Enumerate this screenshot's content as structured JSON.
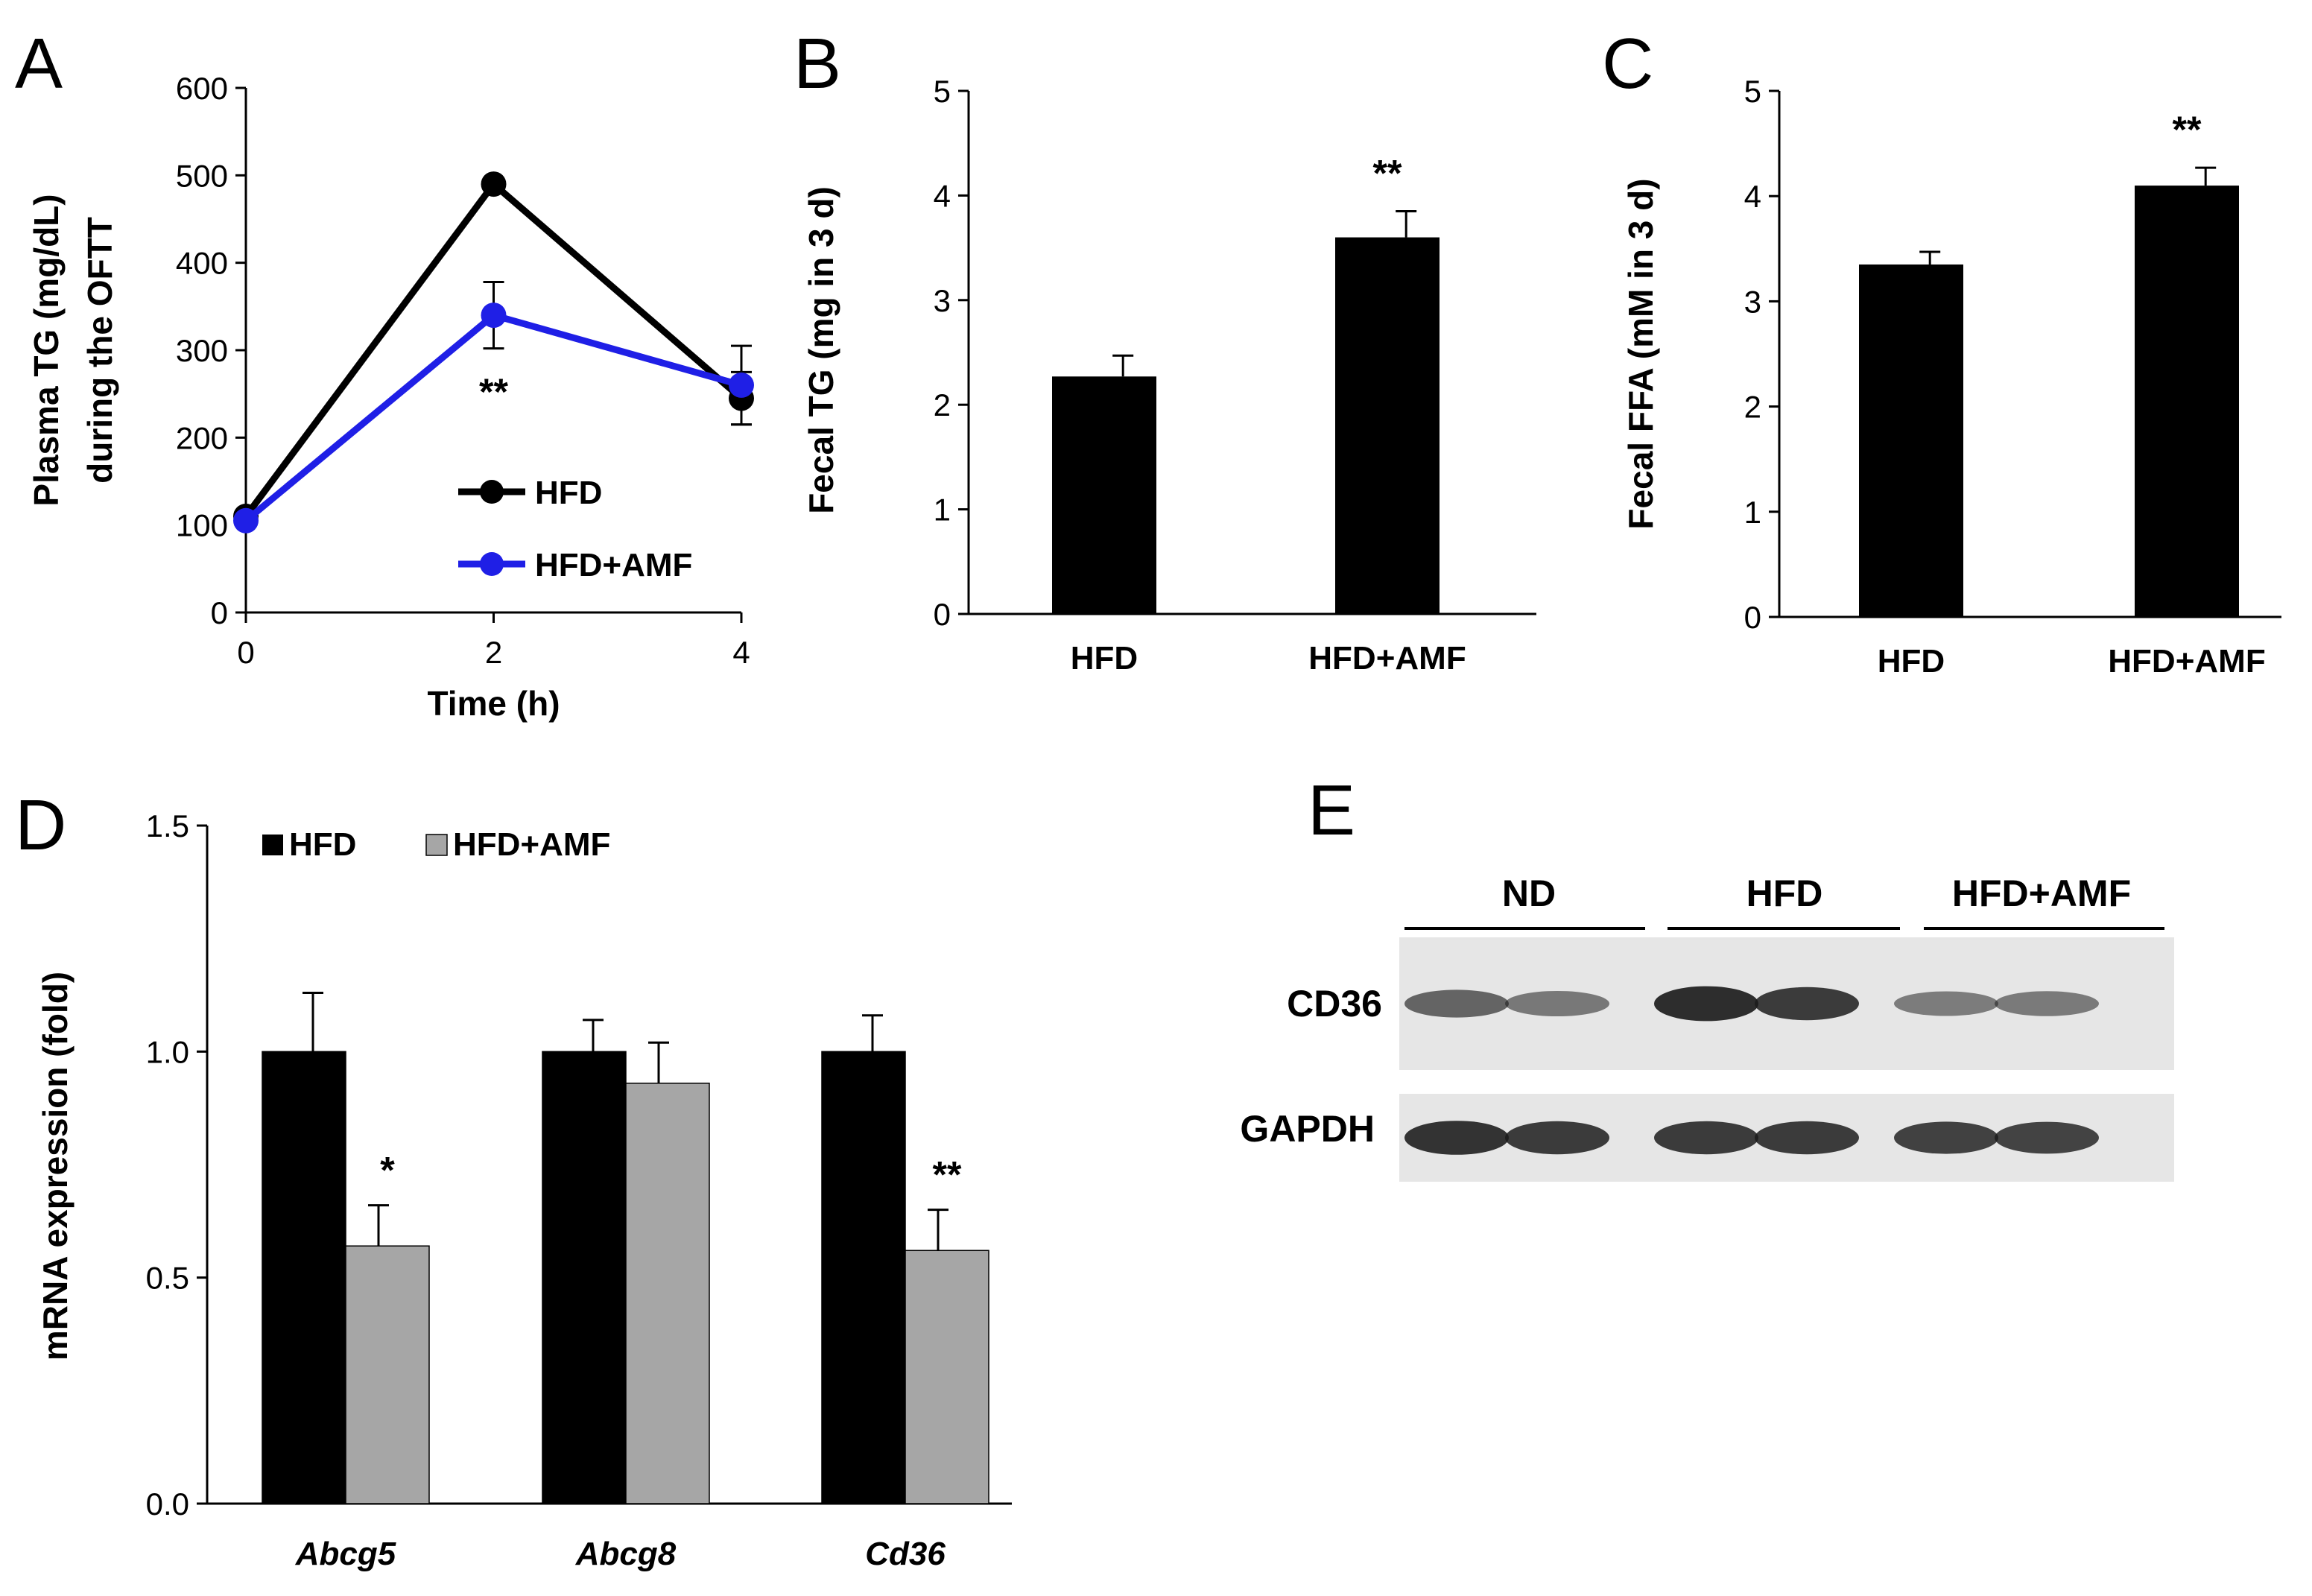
{
  "colors": {
    "hfd": "#000000",
    "amf_line": "#1f1fe6",
    "amf_bar": "#a6a6a6",
    "axis": "#000000",
    "blot_bg": "#e6e6e6",
    "band": "#1a1a1a"
  },
  "chart_data": [
    {
      "panel": "A",
      "type": "line",
      "xlabel": "Time (h)",
      "ylabel_line1": "Plasma TG (mg/dL)",
      "ylabel_line2": "during the OFTT",
      "x": [
        0,
        2,
        4
      ],
      "x_ticks": [
        "0",
        "2",
        "4"
      ],
      "ylim": [
        0,
        600
      ],
      "y_ticks": [
        "0",
        "100",
        "200",
        "300",
        "400",
        "500",
        "600"
      ],
      "series": [
        {
          "name": "HFD",
          "values": [
            110,
            490,
            245
          ],
          "errors": [
            0,
            0,
            30
          ],
          "color_key": "hfd"
        },
        {
          "name": "HFD+AMF",
          "values": [
            105,
            340,
            260
          ],
          "errors": [
            0,
            38,
            45
          ],
          "color_key": "amf_line"
        }
      ],
      "annotations": [
        {
          "x": 2,
          "text": "**"
        }
      ]
    },
    {
      "panel": "B",
      "type": "bar",
      "ylabel": "Fecal TG (mg in 3 d)",
      "categories": [
        "HFD",
        "HFD+AMF"
      ],
      "values": [
        2.27,
        3.6
      ],
      "errors": [
        0.2,
        0.25
      ],
      "ylim": [
        0,
        5
      ],
      "y_ticks": [
        "0",
        "1",
        "2",
        "3",
        "4",
        "5"
      ],
      "annotations": [
        {
          "category": "HFD+AMF",
          "text": "**"
        }
      ]
    },
    {
      "panel": "C",
      "type": "bar",
      "ylabel": "Fecal FFA (mM in 3 d)",
      "categories": [
        "HFD",
        "HFD+AMF"
      ],
      "values": [
        3.35,
        4.1
      ],
      "errors": [
        0.12,
        0.17
      ],
      "ylim": [
        0,
        5
      ],
      "y_ticks": [
        "0",
        "1",
        "2",
        "3",
        "4",
        "5"
      ],
      "annotations": [
        {
          "category": "HFD+AMF",
          "text": "**"
        }
      ]
    },
    {
      "panel": "D",
      "type": "bar",
      "ylabel": "mRNA expression (fold)",
      "categories": [
        "Abcg5",
        "Abcg8",
        "Cd36"
      ],
      "series": [
        {
          "name": "HFD",
          "values": [
            1.0,
            1.0,
            1.0
          ],
          "errors": [
            0.13,
            0.07,
            0.08
          ],
          "color_key": "hfd"
        },
        {
          "name": "HFD+AMF",
          "values": [
            0.57,
            0.93,
            0.56
          ],
          "errors": [
            0.09,
            0.09,
            0.09
          ],
          "color_key": "amf_bar"
        }
      ],
      "ylim": [
        0,
        1.5
      ],
      "y_ticks": [
        "0.0",
        "0.5",
        "1.0",
        "1.5"
      ],
      "annotations": [
        {
          "category": "Abcg5",
          "text": "*"
        },
        {
          "category": "Cd36",
          "text": "**"
        }
      ]
    }
  ],
  "panels": {
    "a": "A",
    "b": "B",
    "c": "C",
    "d": "D",
    "e": "E"
  },
  "blot": {
    "groups": [
      "ND",
      "HFD",
      "HFD+AMF"
    ],
    "rows": [
      {
        "label": "CD36",
        "intensities": [
          0.55,
          0.42,
          0.95,
          0.85,
          0.38,
          0.4
        ]
      },
      {
        "label": "GAPDH",
        "intensities": [
          0.9,
          0.85,
          0.85,
          0.85,
          0.8,
          0.78
        ]
      }
    ]
  }
}
